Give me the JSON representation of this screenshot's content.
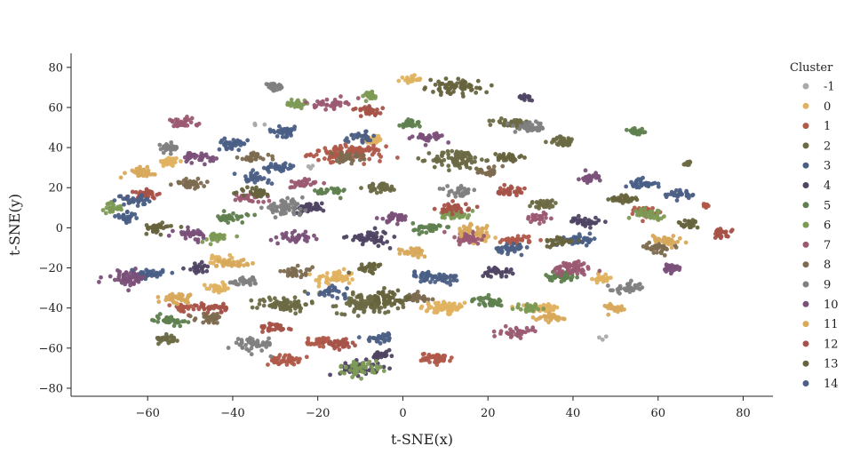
{
  "chart_data": {
    "type": "scatter",
    "title": "",
    "xlabel": "t-SNE(x)",
    "ylabel": "t-SNE(y)",
    "xlim": [
      -78,
      87
    ],
    "ylim": [
      -84,
      87
    ],
    "xticks": [
      -60,
      -40,
      -20,
      0,
      20,
      40,
      60,
      80
    ],
    "yticks": [
      -80,
      -60,
      -40,
      -20,
      0,
      20,
      40,
      60,
      80
    ],
    "xtick_labels": [
      "−60",
      "−40",
      "−20",
      "0",
      "20",
      "40",
      "60",
      "80"
    ],
    "ytick_labels": [
      "−80",
      "−60",
      "−40",
      "−20",
      "0",
      "20",
      "40",
      "60",
      "80"
    ],
    "grid": false,
    "legend": {
      "title": "Cluster",
      "placement": "right",
      "entries": [
        "-1",
        "0",
        "1",
        "2",
        "3",
        "4",
        "5",
        "6",
        "7",
        "8",
        "9",
        "10",
        "11",
        "12",
        "13",
        "14"
      ]
    },
    "colors": {
      "-1": "#aaaaaa",
      "0": "#e0b260",
      "1": "#b05a4a",
      "2": "#6b6a44",
      "3": "#4a5f86",
      "4": "#4f4563",
      "5": "#5f7f4f",
      "6": "#7d9a55",
      "7": "#9b5a72",
      "8": "#7d6b50",
      "9": "#808080",
      "10": "#7a5079",
      "11": "#d8a95b",
      "12": "#a65248",
      "13": "#66633d",
      "14": "#4c5f84"
    },
    "series": [
      {
        "name": "-1",
        "clusters": [
          [
            -35,
            52,
            1.5,
            1.2,
            4
          ],
          [
            47,
            -55,
            1,
            1,
            3
          ],
          [
            -22,
            30,
            1,
            1,
            3
          ]
        ]
      },
      {
        "name": "0",
        "clusters": [
          [
            10,
            -40,
            5,
            3,
            60
          ],
          [
            33,
            -40,
            3,
            2,
            40
          ],
          [
            -55,
            33,
            2,
            2,
            35
          ],
          [
            -7,
            44,
            2,
            2,
            30
          ],
          [
            -16,
            -25,
            4,
            3,
            50
          ],
          [
            2,
            74,
            2,
            1.5,
            20
          ],
          [
            -44,
            -30,
            2,
            2,
            30
          ],
          [
            18,
            -5,
            3,
            2,
            35
          ],
          [
            47,
            -25,
            2,
            2,
            25
          ],
          [
            -43,
            -16,
            2,
            2,
            25
          ]
        ]
      },
      {
        "name": "1",
        "clusters": [
          [
            -13,
            37,
            7,
            3,
            130
          ],
          [
            8,
            -65,
            3,
            2,
            50
          ],
          [
            -28,
            -66,
            3,
            2,
            45
          ],
          [
            27,
            -6,
            3,
            2,
            35
          ],
          [
            57,
            8,
            2,
            2,
            30
          ],
          [
            -20,
            -57,
            2,
            2,
            25
          ],
          [
            -52,
            -40,
            2,
            2,
            25
          ],
          [
            71,
            11,
            1,
            1,
            10
          ]
        ]
      },
      {
        "name": "2",
        "clusters": [
          [
            -8,
            -38,
            6,
            4,
            110
          ],
          [
            -28,
            -38,
            5,
            3,
            80
          ],
          [
            13,
            34,
            5,
            4,
            90
          ],
          [
            26,
            52,
            4,
            2,
            50
          ],
          [
            38,
            43,
            3,
            2,
            35
          ],
          [
            -5,
            20,
            3,
            2,
            35
          ],
          [
            67,
            32,
            1,
            1,
            10
          ],
          [
            33,
            12,
            3,
            2,
            30
          ],
          [
            -55,
            -55,
            2,
            2,
            25
          ]
        ]
      },
      {
        "name": "3",
        "clusters": [
          [
            -28,
            48,
            3,
            2,
            40
          ],
          [
            -60,
            -23,
            3,
            2,
            40
          ],
          [
            42,
            -6,
            3,
            2,
            35
          ],
          [
            -40,
            42,
            3,
            2,
            35
          ],
          [
            56,
            22,
            3,
            2,
            35
          ],
          [
            -65,
            5,
            2,
            2,
            25
          ],
          [
            5,
            -24,
            3,
            2,
            30
          ],
          [
            -29,
            30,
            3,
            2,
            35
          ]
        ]
      },
      {
        "name": "4",
        "clusters": [
          [
            -8,
            -5,
            4,
            3,
            50
          ],
          [
            -10,
            -70,
            4,
            3,
            50
          ],
          [
            -5,
            -64,
            2,
            2,
            25
          ],
          [
            29,
            65,
            1.5,
            1.5,
            15
          ],
          [
            -22,
            10,
            3,
            2,
            35
          ],
          [
            43,
            3,
            3,
            2,
            35
          ],
          [
            22,
            -22,
            3,
            2,
            30
          ],
          [
            -48,
            -20,
            2,
            2,
            25
          ]
        ]
      },
      {
        "name": "5",
        "clusters": [
          [
            -55,
            -46,
            3,
            2,
            40
          ],
          [
            20,
            -37,
            3,
            2,
            35
          ],
          [
            37,
            -24,
            3,
            2,
            40
          ],
          [
            55,
            48,
            2,
            2,
            25
          ],
          [
            -17,
            18,
            3,
            2,
            30
          ],
          [
            6,
            0,
            3,
            2,
            35
          ],
          [
            -40,
            5,
            3,
            2,
            30
          ],
          [
            2,
            52,
            2,
            2,
            25
          ]
        ]
      },
      {
        "name": "6",
        "clusters": [
          [
            -10,
            -70,
            4,
            3,
            45
          ],
          [
            12,
            7,
            3,
            2,
            40
          ],
          [
            -44,
            -5,
            3,
            2,
            30
          ],
          [
            -8,
            66,
            2,
            2,
            25
          ],
          [
            -68,
            10,
            2,
            2,
            25
          ],
          [
            58,
            7,
            3,
            2,
            35
          ],
          [
            30,
            -40,
            3,
            2,
            30
          ],
          [
            -25,
            62,
            2,
            2,
            25
          ]
        ]
      },
      {
        "name": "7",
        "clusters": [
          [
            40,
            -20,
            4,
            3,
            60
          ],
          [
            -17,
            62,
            3,
            2,
            40
          ],
          [
            -52,
            52,
            3,
            2,
            35
          ],
          [
            15,
            -5,
            4,
            3,
            50
          ],
          [
            -36,
            15,
            3,
            2,
            30
          ],
          [
            27,
            -52,
            3,
            2,
            35
          ],
          [
            -24,
            22,
            3,
            2,
            30
          ],
          [
            32,
            5,
            3,
            2,
            30
          ]
        ]
      },
      {
        "name": "8",
        "clusters": [
          [
            -50,
            22,
            3,
            2,
            35
          ],
          [
            -13,
            35,
            3,
            2,
            35
          ],
          [
            -45,
            -45,
            3,
            2,
            40
          ],
          [
            3,
            -35,
            3,
            2,
            35
          ],
          [
            -35,
            35,
            3,
            2,
            30
          ],
          [
            20,
            28,
            3,
            2,
            30
          ],
          [
            -25,
            -22,
            3,
            2,
            30
          ],
          [
            60,
            -10,
            3,
            2,
            35
          ]
        ]
      },
      {
        "name": "9",
        "clusters": [
          [
            -28,
            10,
            4,
            3,
            60
          ],
          [
            -35,
            -58,
            4,
            3,
            50
          ],
          [
            30,
            50,
            3,
            2,
            40
          ],
          [
            -30,
            70,
            2,
            1.5,
            25
          ],
          [
            53,
            -30,
            3,
            2,
            35
          ],
          [
            -55,
            40,
            2,
            2,
            25
          ],
          [
            -37,
            -27,
            3,
            2,
            30
          ],
          [
            14,
            18,
            3,
            2,
            30
          ]
        ]
      },
      {
        "name": "10",
        "clusters": [
          [
            -65,
            -25,
            4,
            3,
            50
          ],
          [
            -2,
            5,
            3,
            2,
            35
          ],
          [
            -25,
            -5,
            3,
            2,
            35
          ],
          [
            44,
            25,
            2,
            2,
            25
          ],
          [
            -48,
            35,
            3,
            2,
            35
          ],
          [
            -50,
            -3,
            3,
            2,
            30
          ],
          [
            63,
            -20,
            2,
            2,
            25
          ],
          [
            6,
            45,
            3,
            2,
            30
          ]
        ]
      },
      {
        "name": "11",
        "clusters": [
          [
            -53,
            -35,
            3,
            2,
            40
          ],
          [
            -62,
            28,
            3,
            2,
            35
          ],
          [
            62,
            -6,
            3,
            2,
            35
          ],
          [
            -40,
            -18,
            3,
            2,
            30
          ],
          [
            3,
            -12,
            3,
            2,
            30
          ],
          [
            16,
            -1,
            3,
            2,
            30
          ],
          [
            35,
            -45,
            3,
            2,
            30
          ],
          [
            50,
            -40,
            2,
            2,
            25
          ]
        ]
      },
      {
        "name": "12",
        "clusters": [
          [
            -45,
            -40,
            3,
            2,
            35
          ],
          [
            12,
            10,
            3,
            2,
            35
          ],
          [
            -30,
            -50,
            3,
            2,
            30
          ],
          [
            75,
            -3,
            2,
            2,
            25
          ],
          [
            -8,
            58,
            3,
            2,
            30
          ],
          [
            -60,
            17,
            3,
            2,
            30
          ],
          [
            -15,
            -58,
            3,
            2,
            30
          ],
          [
            25,
            18,
            3,
            2,
            30
          ]
        ]
      },
      {
        "name": "13",
        "clusters": [
          [
            12,
            70,
            5,
            3,
            70
          ],
          [
            -58,
            0,
            3,
            2,
            35
          ],
          [
            -3,
            -35,
            4,
            3,
            45
          ],
          [
            -35,
            18,
            3,
            2,
            30
          ],
          [
            25,
            35,
            3,
            2,
            35
          ],
          [
            37,
            -7,
            3,
            2,
            30
          ],
          [
            52,
            14,
            3,
            2,
            30
          ],
          [
            -8,
            -20,
            3,
            2,
            30
          ],
          [
            67,
            2,
            2,
            2,
            25
          ]
        ]
      },
      {
        "name": "14",
        "clusters": [
          [
            -63,
            14,
            3,
            2,
            35
          ],
          [
            -35,
            25,
            3,
            2,
            30
          ],
          [
            -10,
            45,
            3,
            2,
            30
          ],
          [
            25,
            -10,
            3,
            2,
            35
          ],
          [
            -5,
            -55,
            3,
            2,
            30
          ],
          [
            66,
            17,
            3,
            2,
            30
          ],
          [
            10,
            -25,
            3,
            2,
            30
          ],
          [
            -17,
            -32,
            3,
            2,
            30
          ]
        ]
      }
    ]
  }
}
